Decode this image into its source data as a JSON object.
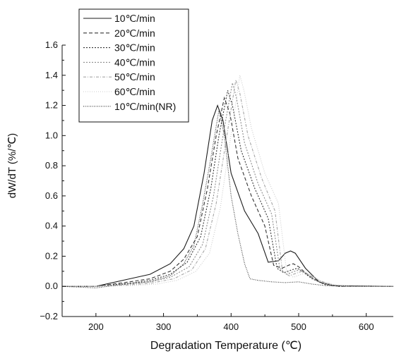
{
  "chart_data": {
    "type": "line",
    "title": "",
    "xlabel": "Degradation Temperature (℃)",
    "ylabel": "dW/dT (%/℃)",
    "xlim": [
      150,
      640
    ],
    "ylim": [
      -0.2,
      1.6
    ],
    "x_ticks": [
      200,
      300,
      400,
      500,
      600
    ],
    "y_ticks": [
      -0.2,
      0.0,
      0.2,
      0.4,
      0.6,
      0.8,
      1.0,
      1.2,
      1.4,
      1.6
    ],
    "x_tick_labels": [
      "200",
      "300",
      "400",
      "500",
      "600"
    ],
    "y_tick_labels": [
      "−0.2",
      "0.0",
      "0.2",
      "0.4",
      "0.6",
      "0.8",
      "1.0",
      "1.2",
      "1.4",
      "1.6"
    ],
    "grid": false,
    "legend_position": "top-left",
    "series": [
      {
        "name": "10℃/min",
        "color": "#1a1a1a",
        "dash": "solid",
        "points": [
          [
            150,
            0.0
          ],
          [
            200,
            0.0
          ],
          [
            250,
            0.05
          ],
          [
            280,
            0.08
          ],
          [
            310,
            0.15
          ],
          [
            330,
            0.25
          ],
          [
            345,
            0.4
          ],
          [
            360,
            0.75
          ],
          [
            372,
            1.1
          ],
          [
            380,
            1.2
          ],
          [
            388,
            1.1
          ],
          [
            400,
            0.75
          ],
          [
            420,
            0.5
          ],
          [
            440,
            0.35
          ],
          [
            455,
            0.16
          ],
          [
            470,
            0.17
          ],
          [
            480,
            0.22
          ],
          [
            488,
            0.235
          ],
          [
            495,
            0.22
          ],
          [
            510,
            0.12
          ],
          [
            530,
            0.03
          ],
          [
            550,
            0.005
          ],
          [
            640,
            0.0
          ]
        ]
      },
      {
        "name": "20℃/min",
        "color": "#333333",
        "dash": "5,3",
        "points": [
          [
            150,
            0.0
          ],
          [
            200,
            0.0
          ],
          [
            250,
            0.03
          ],
          [
            280,
            0.05
          ],
          [
            310,
            0.1
          ],
          [
            330,
            0.18
          ],
          [
            350,
            0.33
          ],
          [
            365,
            0.65
          ],
          [
            378,
            1.0
          ],
          [
            390,
            1.25
          ],
          [
            398,
            1.15
          ],
          [
            410,
            0.85
          ],
          [
            430,
            0.6
          ],
          [
            450,
            0.4
          ],
          [
            463,
            0.14
          ],
          [
            475,
            0.12
          ],
          [
            485,
            0.14
          ],
          [
            492,
            0.15
          ],
          [
            500,
            0.13
          ],
          [
            515,
            0.07
          ],
          [
            535,
            0.02
          ],
          [
            560,
            0.0
          ],
          [
            640,
            0.0
          ]
        ]
      },
      {
        "name": "30℃/min",
        "color": "#333333",
        "dash": "2,2",
        "points": [
          [
            150,
            0.0
          ],
          [
            200,
            0.0
          ],
          [
            250,
            0.02
          ],
          [
            280,
            0.04
          ],
          [
            310,
            0.08
          ],
          [
            335,
            0.16
          ],
          [
            355,
            0.33
          ],
          [
            370,
            0.65
          ],
          [
            382,
            1.0
          ],
          [
            395,
            1.3
          ],
          [
            402,
            1.2
          ],
          [
            415,
            0.9
          ],
          [
            435,
            0.65
          ],
          [
            455,
            0.45
          ],
          [
            468,
            0.12
          ],
          [
            478,
            0.09
          ],
          [
            490,
            0.11
          ],
          [
            498,
            0.12
          ],
          [
            505,
            0.1
          ],
          [
            520,
            0.05
          ],
          [
            540,
            0.01
          ],
          [
            560,
            0.0
          ],
          [
            640,
            0.0
          ]
        ]
      },
      {
        "name": "40℃/min",
        "color": "#8c8c8c",
        "dash": "2,2",
        "points": [
          [
            150,
            0.0
          ],
          [
            200,
            0.0
          ],
          [
            250,
            0.015
          ],
          [
            280,
            0.03
          ],
          [
            310,
            0.06
          ],
          [
            338,
            0.13
          ],
          [
            358,
            0.28
          ],
          [
            374,
            0.6
          ],
          [
            388,
            1.0
          ],
          [
            402,
            1.35
          ],
          [
            408,
            1.25
          ],
          [
            420,
            0.95
          ],
          [
            440,
            0.68
          ],
          [
            460,
            0.48
          ],
          [
            472,
            0.12
          ],
          [
            482,
            0.08
          ],
          [
            494,
            0.1
          ],
          [
            502,
            0.11
          ],
          [
            510,
            0.09
          ],
          [
            525,
            0.04
          ],
          [
            545,
            0.01
          ],
          [
            570,
            0.0
          ],
          [
            640,
            0.0
          ]
        ]
      },
      {
        "name": "50℃/min",
        "color": "#a6a6a6",
        "dash": "4,2,1,2",
        "points": [
          [
            150,
            0.0
          ],
          [
            200,
            0.0
          ],
          [
            250,
            0.01
          ],
          [
            280,
            0.02
          ],
          [
            315,
            0.05
          ],
          [
            342,
            0.11
          ],
          [
            362,
            0.25
          ],
          [
            378,
            0.55
          ],
          [
            392,
            0.95
          ],
          [
            407,
            1.37
          ],
          [
            413,
            1.28
          ],
          [
            425,
            1.0
          ],
          [
            445,
            0.72
          ],
          [
            465,
            0.5
          ],
          [
            476,
            0.1
          ],
          [
            486,
            0.07
          ],
          [
            498,
            0.09
          ],
          [
            505,
            0.1
          ],
          [
            515,
            0.08
          ],
          [
            530,
            0.04
          ],
          [
            550,
            0.01
          ],
          [
            575,
            0.0
          ],
          [
            640,
            0.0
          ]
        ]
      },
      {
        "name": "60℃/min",
        "color": "#cccccc",
        "dash": "1,2",
        "points": [
          [
            150,
            0.0
          ],
          [
            200,
            0.0
          ],
          [
            250,
            0.005
          ],
          [
            290,
            0.015
          ],
          [
            320,
            0.04
          ],
          [
            348,
            0.1
          ],
          [
            368,
            0.22
          ],
          [
            384,
            0.52
          ],
          [
            398,
            0.95
          ],
          [
            413,
            1.4
          ],
          [
            419,
            1.3
          ],
          [
            430,
            1.05
          ],
          [
            450,
            0.75
          ],
          [
            470,
            0.55
          ],
          [
            482,
            0.1
          ],
          [
            492,
            0.06
          ],
          [
            504,
            0.08
          ],
          [
            512,
            0.09
          ],
          [
            520,
            0.07
          ],
          [
            535,
            0.03
          ],
          [
            555,
            0.01
          ],
          [
            580,
            0.0
          ],
          [
            640,
            0.0
          ]
        ]
      },
      {
        "name": "10℃/min(NR)",
        "color": "#3a3a3a",
        "dash": "1,1.5",
        "points": [
          [
            150,
            0.0
          ],
          [
            200,
            -0.01
          ],
          [
            250,
            0.02
          ],
          [
            280,
            0.03
          ],
          [
            310,
            0.07
          ],
          [
            330,
            0.15
          ],
          [
            345,
            0.27
          ],
          [
            358,
            0.55
          ],
          [
            370,
            0.85
          ],
          [
            382,
            1.17
          ],
          [
            390,
            1.0
          ],
          [
            400,
            0.6
          ],
          [
            410,
            0.35
          ],
          [
            420,
            0.15
          ],
          [
            428,
            0.05
          ],
          [
            440,
            0.04
          ],
          [
            460,
            0.03
          ],
          [
            480,
            0.025
          ],
          [
            500,
            0.03
          ],
          [
            520,
            0.015
          ],
          [
            540,
            0.005
          ],
          [
            640,
            0.0
          ]
        ]
      }
    ]
  }
}
